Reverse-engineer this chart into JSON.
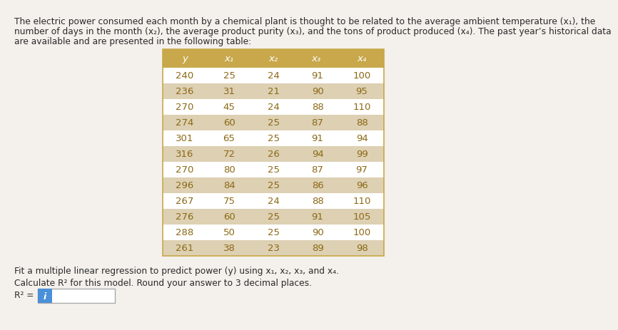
{
  "description_line1": "The electric power consumed each month by a chemical plant is thought to be related to the average ambient temperature (x₁), the",
  "description_line2": "number of days in the month (x₂), the average product purity (x₃), and the tons of product produced (x₄). The past year’s historical data",
  "description_line3": "are available and are presented in the following table:",
  "col_headers": [
    "y",
    "x₁",
    "x₂",
    "x₃  ",
    "x₄"
  ],
  "table_data": [
    [
      240,
      25,
      24,
      91,
      100
    ],
    [
      236,
      31,
      21,
      90,
      95
    ],
    [
      270,
      45,
      24,
      88,
      110
    ],
    [
      274,
      60,
      25,
      87,
      88
    ],
    [
      301,
      65,
      25,
      91,
      94
    ],
    [
      316,
      72,
      26,
      94,
      99
    ],
    [
      270,
      80,
      25,
      87,
      97
    ],
    [
      296,
      84,
      25,
      86,
      96
    ],
    [
      267,
      75,
      24,
      88,
      110
    ],
    [
      276,
      60,
      25,
      91,
      105
    ],
    [
      288,
      50,
      25,
      90,
      100
    ],
    [
      261,
      38,
      23,
      89,
      98
    ]
  ],
  "footer_line1": "Fit a multiple linear regression to predict power (y) using x₁, x₂, x₃, and x₄.",
  "footer_line2": "Calculate R² for this model. Round your answer to 3 decimal places.",
  "r2_label": "R² =",
  "header_bg_color": "#c8a84b",
  "row_even_color": "#ffffff",
  "row_odd_color": "#ddd0b3",
  "bg_color": "#f4f1ec",
  "text_color": "#2a2a2a",
  "table_text_color": "#8b6914",
  "input_box_color": "#4a90d9",
  "font_size_body": 8.8,
  "font_size_table": 9.5,
  "font_size_header": 9.5
}
